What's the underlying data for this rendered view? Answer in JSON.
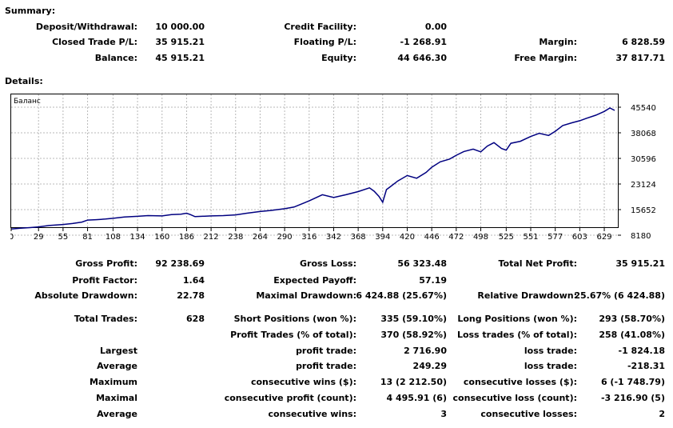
{
  "summary": {
    "title": "Summary:",
    "deposit_label": "Deposit/Withdrawal:",
    "deposit_value": "10 000.00",
    "credit_label": "Credit Facility:",
    "credit_value": "0.00",
    "closed_label": "Closed Trade P/L:",
    "closed_value": "35 915.21",
    "floating_label": "Floating P/L:",
    "floating_value": "-1 268.91",
    "margin_label": "Margin:",
    "margin_value": "6 828.59",
    "balance_label": "Balance:",
    "balance_value": "45 915.21",
    "equity_label": "Equity:",
    "equity_value": "44 646.30",
    "free_margin_label": "Free Margin:",
    "free_margin_value": "37 817.71"
  },
  "details": {
    "title": "Details:"
  },
  "chart_data": {
    "type": "line",
    "title": "Баланс",
    "series_color": "#000080",
    "xticks": [
      0,
      29,
      55,
      81,
      108,
      134,
      160,
      186,
      212,
      238,
      264,
      290,
      316,
      342,
      368,
      394,
      420,
      446,
      472,
      498,
      525,
      551,
      577,
      603,
      629
    ],
    "yticks": [
      8180,
      15652,
      23124,
      30596,
      38068,
      45540
    ],
    "xlim": [
      0,
      640
    ],
    "ylim": [
      8180,
      45540
    ],
    "grid": true,
    "x": [
      0,
      10,
      20,
      29,
      40,
      55,
      65,
      75,
      81,
      90,
      100,
      108,
      120,
      134,
      145,
      160,
      170,
      180,
      186,
      190,
      195,
      212,
      225,
      238,
      250,
      264,
      275,
      290,
      300,
      316,
      330,
      342,
      355,
      368,
      380,
      385,
      390,
      394,
      398,
      402,
      410,
      420,
      430,
      440,
      446,
      455,
      465,
      472,
      480,
      490,
      498,
      505,
      512,
      520,
      525,
      530,
      540,
      551,
      560,
      570,
      577,
      585,
      595,
      603,
      610,
      620,
      629,
      635,
      640
    ],
    "y": [
      10000,
      10200,
      10400,
      10600,
      11000,
      11300,
      11600,
      12000,
      12600,
      12700,
      12900,
      13100,
      13500,
      13700,
      13900,
      13800,
      14200,
      14300,
      14600,
      14200,
      13600,
      13800,
      13900,
      14100,
      14600,
      15100,
      15400,
      15900,
      16400,
      18200,
      20000,
      19200,
      20000,
      20900,
      22000,
      21000,
      19500,
      17800,
      21500,
      22300,
      24000,
      25600,
      24800,
      26500,
      28000,
      29600,
      30400,
      31500,
      32600,
      33300,
      32500,
      34200,
      35200,
      33500,
      33000,
      35000,
      35600,
      37000,
      37900,
      37300,
      38500,
      40200,
      41000,
      41600,
      42300,
      43200,
      44300,
      45300,
      44600
    ]
  },
  "stats": {
    "gross_profit_label": "Gross Profit:",
    "gross_profit_value": "92 238.69",
    "gross_loss_label": "Gross Loss:",
    "gross_loss_value": "56 323.48",
    "total_net_profit_label": "Total Net Profit:",
    "total_net_profit_value": "35 915.21",
    "profit_factor_label": "Profit Factor:",
    "profit_factor_value": "1.64",
    "expected_payoff_label": "Expected Payoff:",
    "expected_payoff_value": "57.19",
    "absolute_drawdown_label": "Absolute Drawdown:",
    "absolute_drawdown_value": "22.78",
    "maximal_drawdown_label": "Maximal Drawdown:",
    "maximal_drawdown_value": "6 424.88 (25.67%)",
    "relative_drawdown_label": "Relative Drawdown:",
    "relative_drawdown_value": "25.67% (6 424.88)",
    "total_trades_label": "Total Trades:",
    "total_trades_value": "628",
    "short_positions_label": "Short Positions (won %):",
    "short_positions_value": "335 (59.10%)",
    "long_positions_label": "Long Positions (won %):",
    "long_positions_value": "293 (58.70%)",
    "profit_trades_label": "Profit Trades (% of total):",
    "profit_trades_value": "370 (58.92%)",
    "loss_trades_label": "Loss trades (% of total):",
    "loss_trades_value": "258 (41.08%)",
    "largest_label": "Largest",
    "largest_profit_label": "profit trade:",
    "largest_profit_value": "2 716.90",
    "largest_loss_label": "loss trade:",
    "largest_loss_value": "-1 824.18",
    "average_label": "Average",
    "average_profit_label": "profit trade:",
    "average_profit_value": "249.29",
    "average_loss_label": "loss trade:",
    "average_loss_value": "-218.31",
    "maximum_label": "Maximum",
    "max_cons_wins_label": "consecutive wins ($):",
    "max_cons_wins_value": "13 (2 212.50)",
    "max_cons_losses_label": "consecutive losses ($):",
    "max_cons_losses_value": "6 (-1 748.79)",
    "maximal_label": "Maximal",
    "maximal_cons_profit_label": "consecutive profit (count):",
    "maximal_cons_profit_value": "4 495.91 (6)",
    "maximal_cons_loss_label": "consecutive loss (count):",
    "maximal_cons_loss_value": "-3 216.90 (5)",
    "average2_label": "Average",
    "avg_cons_wins_label": "consecutive wins:",
    "avg_cons_wins_value": "3",
    "avg_cons_losses_label": "consecutive losses:",
    "avg_cons_losses_value": "2"
  }
}
